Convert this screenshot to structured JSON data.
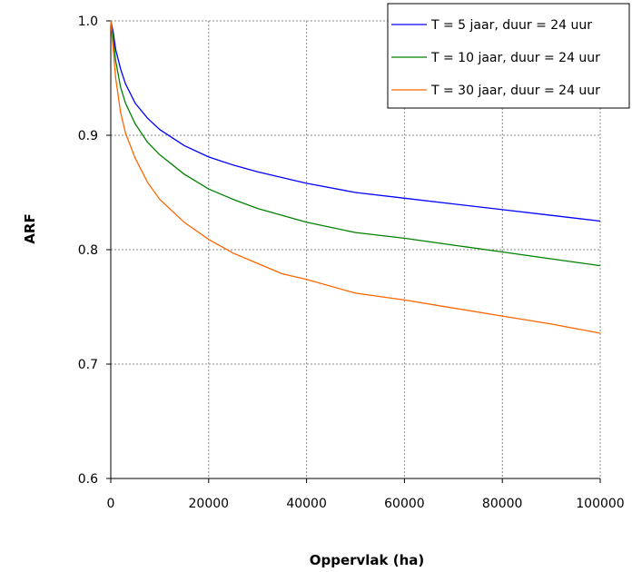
{
  "chart_data": {
    "type": "line",
    "xlabel": "Oppervlak (ha)",
    "ylabel": "ARF",
    "xlim": [
      0,
      100000
    ],
    "ylim": [
      0.6,
      1.0
    ],
    "x_ticks": [
      "0",
      "20000",
      "40000",
      "60000",
      "80000",
      "100000"
    ],
    "y_ticks": [
      "0.6",
      "0.7",
      "0.8",
      "0.9",
      "1.0"
    ],
    "grid": true,
    "legend_position": "top-right",
    "series": [
      {
        "name": "T = 5 jaar, duur = 24 uur",
        "color": "#0000ff",
        "x": [
          0,
          500,
          1000,
          2000,
          3000,
          5000,
          7500,
          10000,
          15000,
          20000,
          25000,
          30000,
          40000,
          50000,
          60000,
          70000,
          80000,
          90000,
          100000
        ],
        "y": [
          1.0,
          0.99,
          0.975,
          0.958,
          0.945,
          0.928,
          0.915,
          0.905,
          0.891,
          0.881,
          0.874,
          0.868,
          0.858,
          0.85,
          0.845,
          0.84,
          0.835,
          0.83,
          0.825
        ]
      },
      {
        "name": "T = 10 jaar, duur = 24 uur",
        "color": "#008000",
        "x": [
          0,
          500,
          1000,
          2000,
          3000,
          5000,
          7500,
          10000,
          15000,
          20000,
          25000,
          30000,
          40000,
          50000,
          60000,
          70000,
          80000,
          90000,
          100000
        ],
        "y": [
          1.0,
          0.985,
          0.965,
          0.942,
          0.928,
          0.91,
          0.894,
          0.883,
          0.866,
          0.853,
          0.844,
          0.836,
          0.824,
          0.815,
          0.81,
          0.804,
          0.798,
          0.792,
          0.786
        ]
      },
      {
        "name": "T = 30 jaar, duur = 24 uur",
        "color": "#ff6600",
        "x": [
          0,
          500,
          1000,
          2000,
          3000,
          5000,
          7500,
          10000,
          15000,
          20000,
          25000,
          30000,
          35000,
          40000,
          50000,
          60000,
          70000,
          80000,
          90000,
          100000
        ],
        "y": [
          1.0,
          0.975,
          0.95,
          0.92,
          0.902,
          0.88,
          0.859,
          0.844,
          0.824,
          0.809,
          0.797,
          0.788,
          0.779,
          0.774,
          0.762,
          0.756,
          0.749,
          0.742,
          0.735,
          0.727
        ]
      }
    ]
  }
}
